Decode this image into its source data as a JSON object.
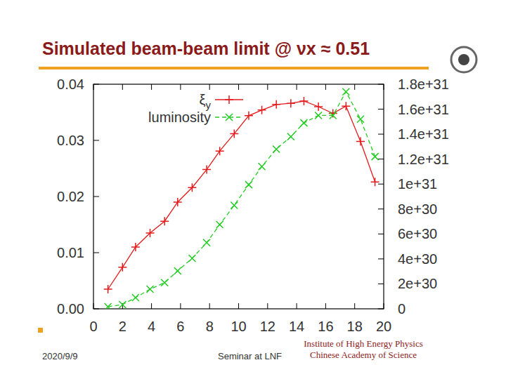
{
  "chart_data": {
    "type": "line",
    "title": "Simulated beam-beam limit @ νx ≈ 0.51",
    "xlim": [
      0,
      20
    ],
    "xticks": [
      0,
      2,
      4,
      6,
      8,
      10,
      12,
      14,
      16,
      18,
      20
    ],
    "ylim": [
      0,
      0.04
    ],
    "yticks": [
      {
        "value": 0,
        "label": "0.00"
      },
      0.01,
      0.02,
      0.03,
      0.04
    ],
    "y2lim": [
      0,
      1.8e+31
    ],
    "y2ticks": [
      {
        "value": 0,
        "label": "0"
      },
      {
        "value": 2e+30,
        "label": "2e+30"
      },
      {
        "value": 4e+30,
        "label": "4e+30"
      },
      {
        "value": 6e+30,
        "label": "6e+30"
      },
      {
        "value": 8e+30,
        "label": "8e+30"
      },
      {
        "value": 1e+31,
        "label": "1e+31"
      },
      {
        "value": 1.2e+31,
        "label": "1.2e+31"
      },
      {
        "value": 1.4e+31,
        "label": "1.4e+31"
      },
      {
        "value": 1.6e+31,
        "label": "1.6e+31"
      },
      {
        "value": 1.8e+31,
        "label": "1.8e+31"
      }
    ],
    "legend": "top",
    "grid": false,
    "x": [
      1.0,
      2.0,
      2.9,
      3.9,
      4.9,
      5.8,
      6.8,
      7.8,
      8.7,
      9.7,
      10.7,
      11.6,
      12.6,
      13.6,
      14.5,
      15.5,
      16.5,
      17.4,
      18.4,
      19.4
    ],
    "series": [
      {
        "name": "ξy",
        "color": "#e41a1c",
        "marker": "plus",
        "line_style": "solid",
        "values": [
          0.0035,
          0.0074,
          0.011,
          0.0135,
          0.0156,
          0.019,
          0.0216,
          0.0248,
          0.0281,
          0.0312,
          0.0344,
          0.0354,
          0.0364,
          0.0366,
          0.037,
          0.036,
          0.0348,
          0.0361,
          0.0298,
          0.0226
        ]
      },
      {
        "name": "luminosity",
        "color": "#22cc22",
        "marker": "x",
        "line_style": "dashed",
        "axis": "y2",
        "values": [
          1.7e+29,
          3.4e+29,
          9e+29,
          1.57e+30,
          2.1e+30,
          3.04e+30,
          4.05e+30,
          5.3e+30,
          6.75e+30,
          8.3e+30,
          9.95e+30,
          1.14e+31,
          1.28e+31,
          1.38e+31,
          1.49e+31,
          1.55e+31,
          1.55e+31,
          1.74e+31,
          1.52e+31,
          1.22e+31
        ]
      }
    ]
  },
  "footer": {
    "date": "2020/9/9",
    "event": "Seminar at LNF",
    "institute": [
      "Institute of High Energy Physics",
      "Chinese Academy of Science"
    ]
  }
}
